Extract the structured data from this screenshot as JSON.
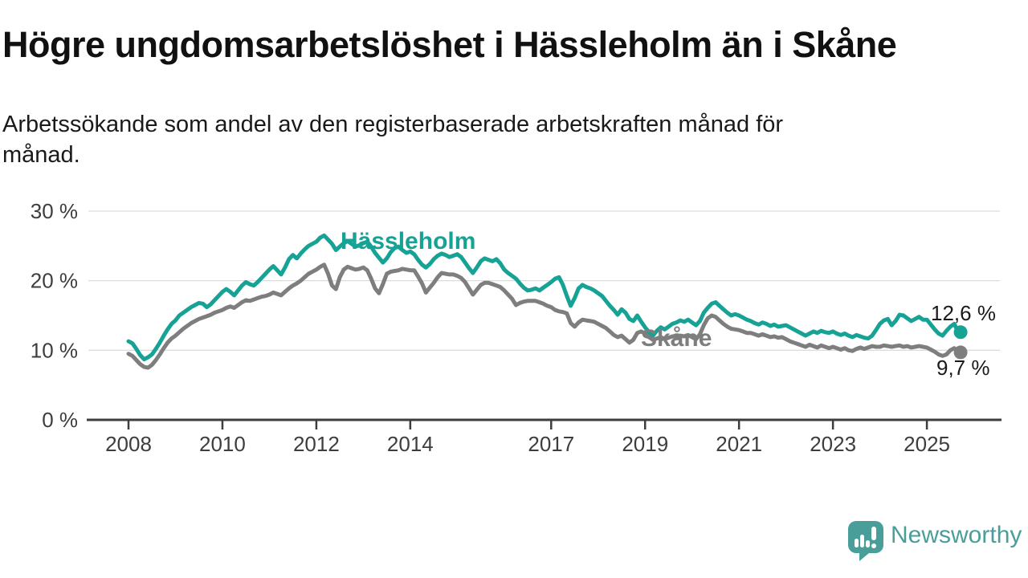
{
  "header": {
    "title": "Högre ungdomsarbetslöshet i Hässleholm än i Skåne",
    "subtitle_lines": [
      "Arbetssökande som andel av den registerbaserade arbetskraften månad för",
      "månad."
    ]
  },
  "branding": {
    "logo_text": "Newsworthy",
    "logo_icon": "speech-bubble-bar-chart",
    "logo_color": "#4a9e99"
  },
  "chart_data": {
    "type": "line",
    "unit": "%",
    "frequency": "monthly",
    "x_start": "2008-01",
    "x_end": "2025-09",
    "x_ticks": [
      2008,
      2010,
      2012,
      2014,
      2017,
      2019,
      2021,
      2023,
      2025
    ],
    "y_ticks": [
      0,
      10,
      20,
      30
    ],
    "y_tick_suffix": " %",
    "ylim": [
      0,
      32
    ],
    "grid": "horizontal",
    "legend_position": "inline-labels",
    "end_labels": {
      "hassleholm": "12,6 %",
      "skane": "9,7 %"
    },
    "end_values": {
      "hassleholm": 12.6,
      "skane": 9.7
    },
    "series": [
      {
        "name": "Hässleholm",
        "color": "#17a296",
        "values": [
          11.3,
          11.0,
          10.2,
          9.3,
          8.7,
          9.0,
          9.4,
          10.2,
          11.1,
          12.1,
          13.0,
          13.8,
          14.3,
          15.0,
          15.4,
          15.8,
          16.2,
          16.5,
          16.8,
          16.7,
          16.2,
          16.6,
          17.2,
          17.8,
          18.4,
          18.8,
          18.4,
          17.9,
          18.6,
          19.3,
          19.8,
          19.5,
          19.3,
          19.8,
          20.4,
          21.0,
          21.6,
          22.1,
          21.5,
          20.9,
          21.9,
          23.1,
          23.7,
          23.2,
          23.9,
          24.5,
          25.0,
          25.3,
          25.6,
          26.2,
          26.5,
          25.9,
          25.3,
          24.4,
          24.9,
          25.4,
          25.7,
          25.3,
          24.9,
          25.1,
          25.4,
          25.6,
          24.9,
          24.0,
          23.3,
          22.6,
          23.2,
          24.1,
          24.7,
          24.9,
          24.4,
          24.0,
          24.2,
          23.8,
          23.0,
          22.3,
          21.9,
          22.4,
          23.1,
          23.6,
          23.9,
          23.7,
          23.4,
          23.6,
          23.8,
          23.4,
          22.6,
          21.8,
          21.1,
          21.9,
          22.8,
          23.2,
          23.0,
          22.8,
          23.1,
          22.5,
          21.6,
          21.1,
          20.7,
          20.3,
          19.6,
          19.0,
          18.6,
          18.7,
          18.9,
          18.6,
          19.0,
          19.4,
          19.8,
          20.3,
          20.5,
          19.4,
          17.8,
          16.4,
          17.5,
          18.9,
          19.4,
          19.1,
          18.9,
          18.6,
          18.2,
          17.8,
          17.1,
          16.4,
          15.8,
          15.1,
          15.9,
          15.4,
          14.5,
          14.2,
          15.0,
          14.1,
          13.3,
          12.6,
          12.1,
          12.8,
          13.3,
          13.0,
          13.4,
          13.8,
          14.0,
          14.3,
          14.1,
          14.4,
          14.0,
          13.6,
          14.2,
          15.4,
          16.1,
          16.7,
          16.9,
          16.4,
          15.9,
          15.4,
          15.0,
          15.2,
          15.0,
          14.7,
          14.4,
          14.2,
          13.9,
          13.7,
          14.0,
          13.8,
          13.5,
          13.7,
          13.4,
          13.5,
          13.6,
          13.3,
          13.0,
          12.7,
          12.4,
          12.1,
          12.4,
          12.7,
          12.5,
          12.8,
          12.6,
          12.5,
          12.7,
          12.4,
          12.2,
          12.4,
          12.1,
          11.9,
          12.2,
          12.0,
          11.8,
          11.7,
          12.1,
          12.9,
          13.8,
          14.3,
          14.5,
          13.6,
          14.2,
          15.1,
          15.0,
          14.6,
          14.2,
          14.5,
          14.8,
          14.4,
          14.4,
          13.7,
          13.0,
          12.4,
          12.1,
          12.8,
          13.4,
          13.8,
          12.6
        ]
      },
      {
        "name": "Skåne",
        "color": "#7e7e7e",
        "values": [
          9.5,
          9.2,
          8.6,
          8.0,
          7.6,
          7.5,
          7.9,
          8.6,
          9.4,
          10.3,
          11.1,
          11.7,
          12.1,
          12.6,
          13.1,
          13.5,
          13.9,
          14.2,
          14.5,
          14.7,
          14.9,
          15.1,
          15.4,
          15.6,
          15.8,
          16.1,
          16.3,
          16.1,
          16.5,
          16.9,
          17.2,
          17.1,
          17.3,
          17.5,
          17.7,
          17.8,
          18.0,
          18.3,
          18.1,
          17.9,
          18.4,
          18.9,
          19.3,
          19.6,
          20.0,
          20.5,
          21.0,
          21.3,
          21.6,
          22.0,
          22.3,
          21.0,
          19.3,
          18.8,
          20.5,
          21.6,
          22.0,
          21.8,
          21.6,
          21.7,
          21.9,
          21.5,
          20.3,
          18.9,
          18.2,
          19.5,
          21.0,
          21.3,
          21.4,
          21.5,
          21.7,
          21.6,
          21.5,
          21.5,
          20.6,
          19.6,
          18.3,
          19.0,
          19.7,
          20.5,
          21.1,
          21.0,
          20.9,
          20.9,
          20.7,
          20.4,
          19.8,
          18.9,
          18.0,
          18.7,
          19.4,
          19.7,
          19.7,
          19.5,
          19.3,
          19.1,
          18.6,
          18.0,
          17.4,
          16.5,
          16.8,
          17.0,
          17.1,
          17.1,
          17.1,
          16.9,
          16.7,
          16.4,
          16.2,
          15.8,
          15.6,
          15.5,
          15.3,
          13.9,
          13.4,
          14.0,
          14.4,
          14.3,
          14.2,
          14.1,
          13.8,
          13.5,
          13.2,
          12.7,
          12.2,
          11.9,
          12.1,
          11.6,
          11.1,
          11.5,
          12.5,
          12.7,
          12.4,
          11.9,
          11.5,
          11.7,
          11.9,
          11.6,
          11.8,
          12.0,
          11.9,
          12.1,
          12.0,
          12.2,
          11.9,
          11.6,
          12.3,
          13.6,
          14.6,
          15.0,
          14.8,
          14.3,
          13.8,
          13.4,
          13.1,
          13.0,
          12.9,
          12.7,
          12.5,
          12.5,
          12.3,
          12.1,
          12.3,
          12.1,
          11.9,
          12.0,
          11.8,
          11.9,
          11.6,
          11.3,
          11.1,
          10.9,
          10.7,
          10.5,
          10.8,
          10.6,
          10.4,
          10.7,
          10.5,
          10.3,
          10.5,
          10.3,
          10.1,
          10.3,
          10.0,
          9.9,
          10.2,
          10.4,
          10.2,
          10.4,
          10.6,
          10.5,
          10.5,
          10.7,
          10.6,
          10.5,
          10.6,
          10.7,
          10.5,
          10.6,
          10.4,
          10.5,
          10.6,
          10.5,
          10.4,
          10.1,
          9.8,
          9.4,
          9.2,
          9.4,
          10.0,
          10.3,
          9.7
        ]
      }
    ]
  }
}
